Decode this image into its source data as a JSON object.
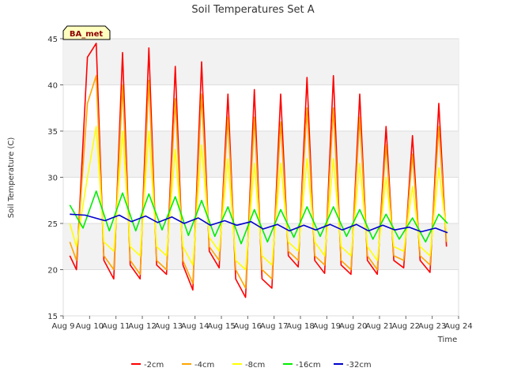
{
  "chart_data": {
    "type": "line",
    "title": "Soil Temperatures Set A",
    "xlabel": "Time",
    "ylabel": "Soil Temperature (C)",
    "badge": "BA_met",
    "xlim": [
      "Aug 9",
      "Aug 24"
    ],
    "ylim": [
      15,
      45
    ],
    "y_ticks": [
      15,
      20,
      25,
      30,
      35,
      40,
      45
    ],
    "x_ticks": [
      "Aug 9",
      "Aug 10",
      "Aug 11",
      "Aug 12",
      "Aug 13",
      "Aug 14",
      "Aug 15",
      "Aug 16",
      "Aug 17",
      "Aug 18",
      "Aug 19",
      "Aug 20",
      "Aug 21",
      "Aug 22",
      "Aug 23",
      "Aug 24"
    ],
    "grid": true,
    "legend_position": "bottom",
    "series": [
      {
        "name": "-2cm",
        "color": "#ff0000",
        "x": [
          "Aug 9 06:00",
          "Aug 9 12:00",
          "Aug 9 22:00",
          "Aug 10 06:00",
          "Aug 10 13:00",
          "Aug 10 22:00",
          "Aug 11 06:00",
          "Aug 11 13:00",
          "Aug 11 22:00",
          "Aug 12 06:00",
          "Aug 12 13:00",
          "Aug 12 22:00",
          "Aug 13 06:00",
          "Aug 13 13:00",
          "Aug 13 22:00",
          "Aug 14 06:00",
          "Aug 14 13:00",
          "Aug 14 22:00",
          "Aug 15 06:00",
          "Aug 15 13:00",
          "Aug 15 22:00",
          "Aug 16 06:00",
          "Aug 16 13:00",
          "Aug 16 22:00",
          "Aug 17 06:00",
          "Aug 17 13:00",
          "Aug 17 22:00",
          "Aug 18 06:00",
          "Aug 18 13:00",
          "Aug 18 22:00",
          "Aug 19 06:00",
          "Aug 19 13:00",
          "Aug 19 22:00",
          "Aug 20 06:00",
          "Aug 20 13:00",
          "Aug 20 22:00",
          "Aug 21 06:00",
          "Aug 21 13:00",
          "Aug 21 22:00",
          "Aug 22 06:00",
          "Aug 22 13:00",
          "Aug 22 22:00",
          "Aug 23 06:00",
          "Aug 23 13:00"
        ],
        "y": [
          21.5,
          20.0,
          43.0,
          44.5,
          21.0,
          19.0,
          43.5,
          20.5,
          19.0,
          44.0,
          20.5,
          19.5,
          42.0,
          20.5,
          17.8,
          42.5,
          22.0,
          20.2,
          39.0,
          19.0,
          17.0,
          39.5,
          19.0,
          18.0,
          39.0,
          21.5,
          20.3,
          40.8,
          21.0,
          19.6,
          41.0,
          20.5,
          19.5,
          39.0,
          21.0,
          19.5,
          35.5,
          21.0,
          20.2,
          34.5,
          21.0,
          19.7,
          38.0,
          22.5
        ]
      },
      {
        "name": "-4cm",
        "color": "#ffa500",
        "x": [
          "Aug 9 06:00",
          "Aug 9 12:00",
          "Aug 9 22:00",
          "Aug 10 06:00",
          "Aug 10 13:00",
          "Aug 10 22:00",
          "Aug 11 06:00",
          "Aug 11 13:00",
          "Aug 11 22:00",
          "Aug 12 06:00",
          "Aug 12 13:00",
          "Aug 12 22:00",
          "Aug 13 06:00",
          "Aug 13 13:00",
          "Aug 13 22:00",
          "Aug 14 06:00",
          "Aug 14 13:00",
          "Aug 14 22:00",
          "Aug 15 06:00",
          "Aug 15 13:00",
          "Aug 15 22:00",
          "Aug 16 06:00",
          "Aug 16 13:00",
          "Aug 16 22:00",
          "Aug 17 06:00",
          "Aug 17 13:00",
          "Aug 17 22:00",
          "Aug 18 06:00",
          "Aug 18 13:00",
          "Aug 18 22:00",
          "Aug 19 06:00",
          "Aug 19 13:00",
          "Aug 19 22:00",
          "Aug 20 06:00",
          "Aug 20 13:00",
          "Aug 20 22:00",
          "Aug 21 06:00",
          "Aug 21 13:00",
          "Aug 21 22:00",
          "Aug 22 06:00",
          "Aug 22 13:00",
          "Aug 22 22:00",
          "Aug 23 06:00",
          "Aug 23 13:00"
        ],
        "y": [
          23.0,
          21.0,
          38.0,
          41.0,
          21.5,
          20.0,
          40.0,
          21.0,
          19.5,
          40.5,
          21.0,
          20.0,
          38.5,
          21.0,
          18.5,
          39.0,
          22.5,
          21.0,
          36.5,
          20.0,
          18.0,
          36.5,
          20.0,
          19.0,
          36.0,
          22.0,
          21.0,
          37.5,
          21.5,
          20.5,
          37.5,
          21.0,
          20.0,
          36.5,
          21.5,
          20.0,
          33.5,
          21.5,
          21.0,
          32.5,
          21.5,
          20.5,
          35.5,
          23.0
        ]
      },
      {
        "name": "-8cm",
        "color": "#ffff00",
        "x": [
          "Aug 9 06:00",
          "Aug 9 12:00",
          "Aug 9 22:00",
          "Aug 10 06:00",
          "Aug 10 13:00",
          "Aug 10 22:00",
          "Aug 11 06:00",
          "Aug 11 13:00",
          "Aug 11 22:00",
          "Aug 12 06:00",
          "Aug 12 13:00",
          "Aug 12 22:00",
          "Aug 13 06:00",
          "Aug 13 13:00",
          "Aug 13 22:00",
          "Aug 14 06:00",
          "Aug 14 13:00",
          "Aug 14 22:00",
          "Aug 15 06:00",
          "Aug 15 13:00",
          "Aug 15 22:00",
          "Aug 16 06:00",
          "Aug 16 13:00",
          "Aug 16 22:00",
          "Aug 17 06:00",
          "Aug 17 13:00",
          "Aug 17 22:00",
          "Aug 18 06:00",
          "Aug 18 13:00",
          "Aug 18 22:00",
          "Aug 19 06:00",
          "Aug 19 13:00",
          "Aug 19 22:00",
          "Aug 20 06:00",
          "Aug 20 13:00",
          "Aug 20 22:00",
          "Aug 21 06:00",
          "Aug 21 13:00",
          "Aug 21 22:00",
          "Aug 22 06:00",
          "Aug 22 13:00",
          "Aug 22 22:00",
          "Aug 23 06:00",
          "Aug 23 13:00"
        ],
        "y": [
          25.0,
          22.5,
          30.0,
          35.5,
          23.0,
          22.0,
          35.0,
          22.5,
          21.5,
          35.0,
          22.5,
          21.5,
          33.0,
          22.5,
          20.5,
          33.5,
          23.5,
          22.0,
          32.0,
          21.0,
          20.0,
          31.5,
          21.5,
          20.5,
          31.5,
          23.0,
          22.0,
          32.0,
          23.0,
          21.5,
          32.0,
          22.5,
          21.5,
          31.5,
          22.5,
          21.0,
          30.0,
          22.5,
          22.0,
          29.0,
          22.5,
          21.5,
          31.0,
          24.0
        ]
      },
      {
        "name": "-16cm",
        "color": "#00ee00",
        "x": [
          "Aug 9 06:00",
          "Aug 9 18:00",
          "Aug 10 06:00",
          "Aug 10 18:00",
          "Aug 11 06:00",
          "Aug 11 18:00",
          "Aug 12 06:00",
          "Aug 12 18:00",
          "Aug 13 06:00",
          "Aug 13 18:00",
          "Aug 14 06:00",
          "Aug 14 18:00",
          "Aug 15 06:00",
          "Aug 15 18:00",
          "Aug 16 06:00",
          "Aug 16 18:00",
          "Aug 17 06:00",
          "Aug 17 18:00",
          "Aug 18 06:00",
          "Aug 18 18:00",
          "Aug 19 06:00",
          "Aug 19 18:00",
          "Aug 20 06:00",
          "Aug 20 18:00",
          "Aug 21 06:00",
          "Aug 21 18:00",
          "Aug 22 06:00",
          "Aug 22 18:00",
          "Aug 23 06:00",
          "Aug 23 14:00"
        ],
        "y": [
          27.0,
          24.5,
          28.5,
          24.2,
          28.3,
          24.2,
          28.2,
          24.3,
          27.9,
          23.7,
          27.5,
          23.6,
          26.8,
          22.8,
          26.5,
          23.0,
          26.5,
          23.5,
          26.8,
          23.6,
          26.8,
          23.6,
          26.5,
          23.3,
          26.0,
          23.3,
          25.6,
          23.0,
          26.0,
          25.0
        ]
      },
      {
        "name": "-32cm",
        "color": "#0000cc",
        "x": [
          "Aug 9 06:00",
          "Aug 9 20:00",
          "Aug 10 14:00",
          "Aug 11 03:00",
          "Aug 11 14:00",
          "Aug 12 03:00",
          "Aug 12 14:00",
          "Aug 13 03:00",
          "Aug 13 14:00",
          "Aug 14 03:00",
          "Aug 14 14:00",
          "Aug 15 03:00",
          "Aug 15 14:00",
          "Aug 16 03:00",
          "Aug 16 14:00",
          "Aug 17 03:00",
          "Aug 17 14:00",
          "Aug 18 03:00",
          "Aug 18 14:00",
          "Aug 19 03:00",
          "Aug 19 14:00",
          "Aug 20 03:00",
          "Aug 20 14:00",
          "Aug 21 03:00",
          "Aug 21 14:00",
          "Aug 22 03:00",
          "Aug 22 14:00",
          "Aug 23 03:00",
          "Aug 23 14:00"
        ],
        "y": [
          26.0,
          25.9,
          25.3,
          25.9,
          25.2,
          25.8,
          25.1,
          25.7,
          25.0,
          25.6,
          24.8,
          25.3,
          24.8,
          25.2,
          24.4,
          24.9,
          24.2,
          24.8,
          24.3,
          24.9,
          24.3,
          24.9,
          24.2,
          24.8,
          24.3,
          24.6,
          24.1,
          24.5,
          24.0
        ]
      }
    ]
  }
}
